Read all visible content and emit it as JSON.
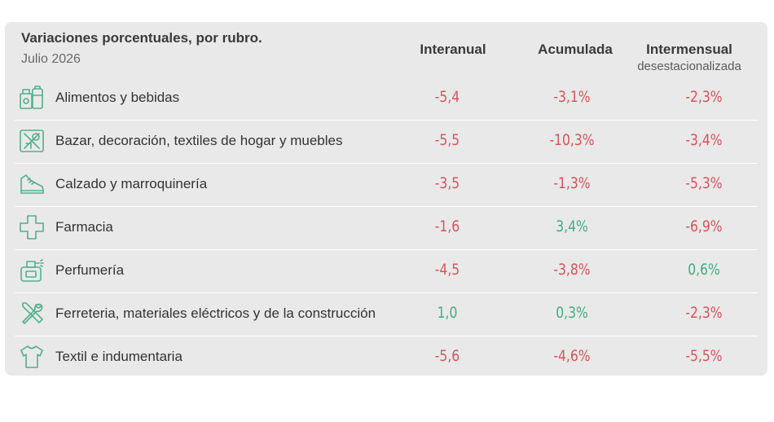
{
  "chart_data": {
    "type": "table",
    "title": "Variaciones porcentuales, por rubro.",
    "subtitle": "Julio 2026",
    "columns": [
      {
        "label": "Interanual",
        "sub": ""
      },
      {
        "label": "Acumulada",
        "sub": ""
      },
      {
        "label": "Intermensual",
        "sub": "desestacionalizada"
      }
    ],
    "rows": [
      {
        "label": "Alimentos y bebidas",
        "icon": "grocery-bag-icon",
        "values": [
          "-5,4",
          "-3,1%",
          "-2,3%"
        ]
      },
      {
        "label": "Bazar, decoración, textiles de hogar y muebles",
        "icon": "home-goods-icon",
        "values": [
          "-5,5",
          "-10,3%",
          "-3,4%"
        ]
      },
      {
        "label": "Calzado y marroquinería",
        "icon": "shoe-icon",
        "values": [
          "-3,5",
          "-1,3%",
          "-5,3%"
        ]
      },
      {
        "label": "Farmacia",
        "icon": "pharmacy-cross-icon",
        "values": [
          "-1,6",
          "3,4%",
          "-6,9%"
        ]
      },
      {
        "label": "Perfumería",
        "icon": "perfume-bottle-icon",
        "values": [
          "-4,5",
          "-3,8%",
          "0,6%"
        ]
      },
      {
        "label": "Ferreteria, materiales eléctricos y de la construcción",
        "icon": "tools-icon",
        "values": [
          "1,0",
          "0,3%",
          "-2,3%"
        ]
      },
      {
        "label": "Textil e indumentaria",
        "icon": "shirt-icon",
        "values": [
          "-5,6",
          "-4,6%",
          "-5,5%"
        ]
      }
    ]
  },
  "colors": {
    "negative": "#d9535b",
    "positive": "#3fae7e",
    "icon": "#52b08c",
    "card_background": "#e9e9e9"
  }
}
